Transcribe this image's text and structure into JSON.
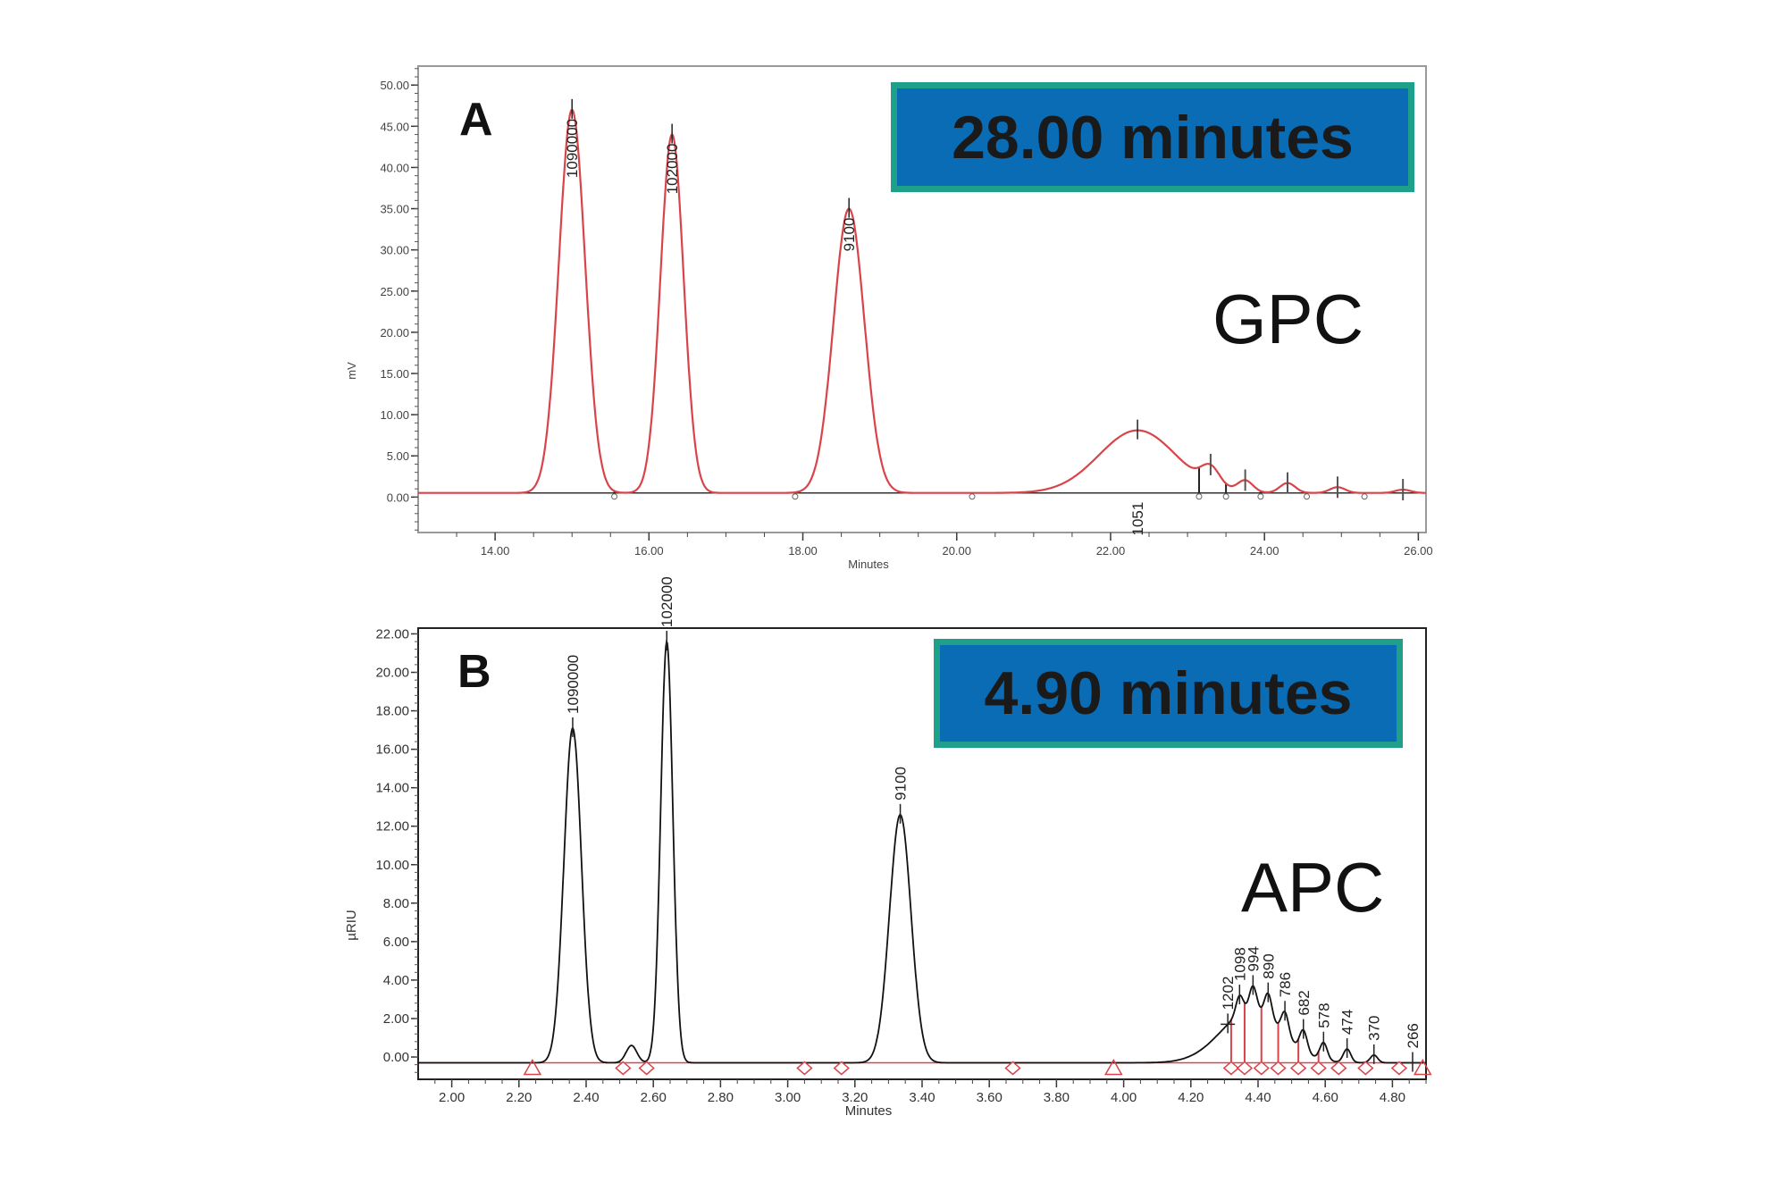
{
  "chart_data": [
    {
      "type": "line",
      "panel": "A",
      "technique": "GPC",
      "run_time": "28.00 minutes",
      "xlabel": "Minutes",
      "ylabel": "mV",
      "xlim": [
        13.0,
        26.1
      ],
      "ylim": [
        -4.3,
        52.3
      ],
      "xticks": [
        "14.00",
        "16.00",
        "18.00",
        "20.00",
        "22.00",
        "24.00",
        "26.00"
      ],
      "yticks": [
        "0.00",
        "5.00",
        "10.00",
        "15.00",
        "20.00",
        "25.00",
        "30.00",
        "35.00",
        "40.00",
        "45.00",
        "50.00"
      ],
      "line_color": "#d9444a",
      "baseline": 0.5,
      "peaks": [
        {
          "t": 15.0,
          "h": 46.5,
          "w": 0.17,
          "label": "1090000"
        },
        {
          "t": 16.3,
          "h": 43.5,
          "w": 0.15,
          "label": "102000"
        },
        {
          "t": 18.6,
          "h": 34.5,
          "w": 0.2,
          "label": "9100"
        },
        {
          "t": 22.35,
          "h": 7.6,
          "w": 0.5,
          "label": "1051"
        },
        {
          "t": 23.3,
          "h": 2.2,
          "w": 0.12,
          "label": ""
        },
        {
          "t": 23.75,
          "h": 1.4,
          "w": 0.1,
          "label": ""
        },
        {
          "t": 24.3,
          "h": 1.2,
          "w": 0.1,
          "label": ""
        },
        {
          "t": 24.95,
          "h": 0.7,
          "w": 0.1,
          "label": ""
        },
        {
          "t": 25.8,
          "h": 0.4,
          "w": 0.1,
          "label": ""
        }
      ],
      "drop_lines": [
        15.55,
        17.9,
        20.2,
        23.15,
        23.5,
        23.95,
        24.55,
        25.3
      ]
    },
    {
      "type": "line",
      "panel": "B",
      "technique": "APC",
      "run_time": "4.90 minutes",
      "xlabel": "Minutes",
      "ylabel": "µRIU",
      "xlim": [
        1.9,
        4.9
      ],
      "ylim": [
        -1.16,
        22.3
      ],
      "xticks": [
        "2.00",
        "2.20",
        "2.40",
        "2.60",
        "2.80",
        "3.00",
        "3.20",
        "3.40",
        "3.60",
        "3.80",
        "4.00",
        "4.20",
        "4.40",
        "4.60",
        "4.80"
      ],
      "yticks": [
        "0.00",
        "2.00",
        "4.00",
        "6.00",
        "8.00",
        "10.00",
        "12.00",
        "14.00",
        "16.00",
        "18.00",
        "20.00",
        "22.00"
      ],
      "line_color": "#111111",
      "baseline_color": "#d9444a",
      "baseline": -0.3,
      "peaks": [
        {
          "t": 2.36,
          "h": 17.4,
          "w": 0.026,
          "label": "1090000"
        },
        {
          "t": 2.535,
          "h": 0.9,
          "w": 0.016,
          "label": ""
        },
        {
          "t": 2.64,
          "h": 21.9,
          "w": 0.018,
          "label": "102000"
        },
        {
          "t": 3.335,
          "h": 12.9,
          "w": 0.032,
          "label": "9100"
        },
        {
          "t": 4.31,
          "h": 0.0,
          "w": 0.01,
          "label": "1202"
        },
        {
          "t": 4.345,
          "h": 1.0,
          "w": 0.011,
          "label": "1098"
        },
        {
          "t": 4.385,
          "h": 1.3,
          "w": 0.011,
          "label": "994"
        },
        {
          "t": 4.43,
          "h": 1.3,
          "w": 0.011,
          "label": "890"
        },
        {
          "t": 4.48,
          "h": 1.2,
          "w": 0.011,
          "label": "786"
        },
        {
          "t": 4.535,
          "h": 1.1,
          "w": 0.011,
          "label": "682"
        },
        {
          "t": 4.595,
          "h": 0.9,
          "w": 0.011,
          "label": "578"
        },
        {
          "t": 4.665,
          "h": 0.7,
          "w": 0.011,
          "label": "474"
        },
        {
          "t": 4.745,
          "h": 0.4,
          "w": 0.011,
          "label": "370"
        },
        {
          "t": 4.86,
          "h": 0.0,
          "w": 0.01,
          "label": "266"
        }
      ],
      "broad": {
        "t": 4.38,
        "h": 2.7,
        "w": 0.09
      },
      "triangles": [
        2.24,
        3.97,
        4.89
      ],
      "diamonds": [
        2.51,
        2.58,
        3.05,
        3.16,
        3.67,
        4.32,
        4.36,
        4.41,
        4.46,
        4.52,
        4.58,
        4.64,
        4.72,
        4.82
      ],
      "drop_lines": [
        4.32,
        4.36,
        4.41,
        4.46,
        4.52,
        4.58
      ]
    }
  ]
}
